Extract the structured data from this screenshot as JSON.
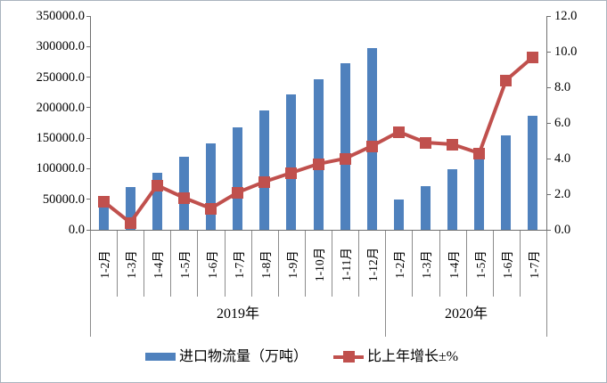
{
  "chart_data": {
    "type": "bar+line",
    "title": "",
    "categories": [
      "1-2月",
      "1-3月",
      "1-4月",
      "1-5月",
      "1-6月",
      "1-7月",
      "1-8月",
      "1-9月",
      "1-10月",
      "1-11月",
      "1-12月",
      "1-2月",
      "1-3月",
      "1-4月",
      "1-5月",
      "1-6月",
      "1-7月"
    ],
    "groups": [
      {
        "label": "2019年",
        "span": 11
      },
      {
        "label": "2020年",
        "span": 6
      }
    ],
    "series": [
      {
        "name": "进口物流量（万吨）",
        "type": "bar",
        "color": "#4F81BD",
        "values": [
          46000,
          70000,
          94000,
          120000,
          141000,
          168000,
          195000,
          222000,
          246000,
          272000,
          298000,
          49000,
          71000,
          99000,
          116000,
          155000,
          186000
        ]
      },
      {
        "name": "比上年增长±%",
        "type": "line",
        "color": "#C0504D",
        "values": [
          1.6,
          0.4,
          2.5,
          1.8,
          1.2,
          2.1,
          2.7,
          3.2,
          3.7,
          4.0,
          4.7,
          5.5,
          4.9,
          4.8,
          4.3,
          8.4,
          9.7
        ]
      }
    ],
    "left_axis": {
      "min": 0,
      "max": 350000,
      "tick_labels": [
        "350000.0",
        "300000.0",
        "250000.0",
        "200000.0",
        "150000.0",
        "100000.0",
        "50000.0",
        "0.0"
      ]
    },
    "right_axis": {
      "min": 0,
      "max": 12,
      "tick_labels": [
        "12.0",
        "10.0",
        "8.0",
        "6.0",
        "4.0",
        "2.0",
        "0.0"
      ]
    },
    "grid": false,
    "legend_position": "bottom"
  },
  "legend": {
    "bar_label": "进口物流量（万吨）",
    "line_label": "比上年增长±%"
  }
}
